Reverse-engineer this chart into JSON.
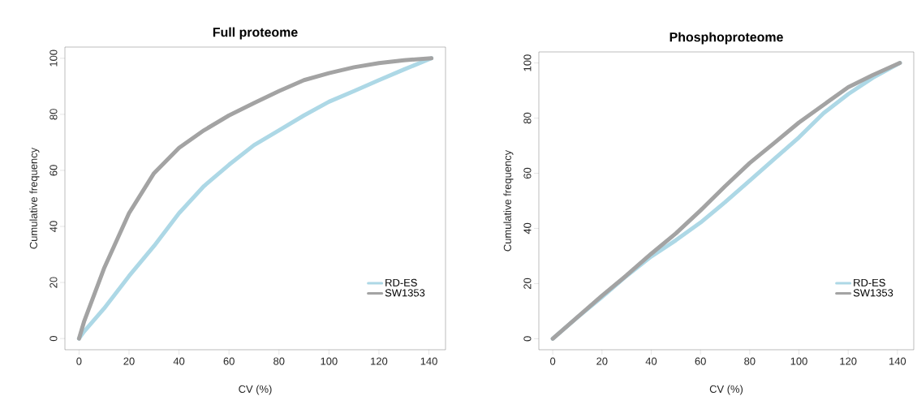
{
  "chart_data": [
    {
      "type": "line",
      "title": "Full proteome",
      "xlabel": "CV (%)",
      "ylabel": "Cumulative frequency",
      "x": [
        0,
        2,
        10,
        20,
        30,
        40,
        50,
        60,
        70,
        80,
        90,
        100,
        110,
        120,
        130,
        141
      ],
      "series": [
        {
          "name": "RD-ES",
          "color": "#add8e6",
          "values": [
            0,
            2.5,
            10.7,
            22.3,
            33,
            44.7,
            54.4,
            62,
            69,
            74.3,
            79.6,
            84.5,
            88.3,
            92.2,
            96,
            100
          ]
        },
        {
          "name": "SW1353",
          "color": "#a3a3a3",
          "values": [
            0,
            6,
            25,
            44.7,
            59,
            68,
            74.3,
            79.6,
            84,
            88.3,
            92.2,
            94.7,
            96.8,
            98.3,
            99.3,
            100
          ]
        }
      ],
      "xlim": [
        -5.64,
        146.64
      ],
      "ylim": [
        -4,
        104
      ],
      "xticks": [
        0,
        20,
        40,
        60,
        80,
        100,
        120,
        140
      ],
      "yticks": [
        0,
        20,
        40,
        60,
        80,
        100
      ],
      "legend": "bottom right"
    },
    {
      "type": "line",
      "title": "Phosphoproteome",
      "xlabel": "CV (%)",
      "ylabel": "Cumulative frequency",
      "x": [
        0,
        10,
        20,
        30,
        40,
        50,
        60,
        70,
        80,
        90,
        100,
        110,
        120,
        130,
        141
      ],
      "series": [
        {
          "name": "RD-ES",
          "color": "#add8e6",
          "values": [
            0,
            7.7,
            15.1,
            22.8,
            29.8,
            35.7,
            42.1,
            49.5,
            57.3,
            65.2,
            73,
            81.8,
            88.7,
            94.6,
            100
          ]
        },
        {
          "name": "SW1353",
          "color": "#a3a3a3",
          "values": [
            0,
            7.8,
            15.6,
            23,
            30.8,
            38.2,
            46.5,
            55.3,
            63.7,
            71,
            78.4,
            84.8,
            91.2,
            95.6,
            100
          ]
        }
      ],
      "xlim": [
        -5.64,
        146.64
      ],
      "ylim": [
        -4,
        104
      ],
      "xticks": [
        0,
        20,
        40,
        60,
        80,
        100,
        120,
        140
      ],
      "yticks": [
        0,
        20,
        40,
        60,
        80,
        100
      ],
      "legend": "bottom right"
    }
  ]
}
